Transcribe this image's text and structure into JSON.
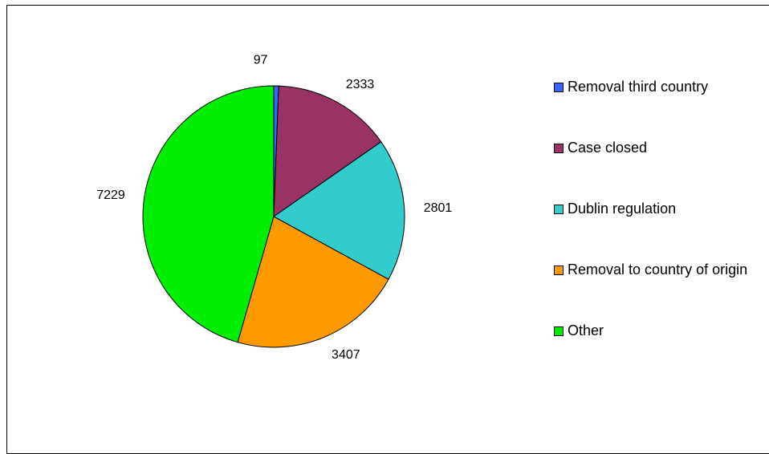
{
  "chart_data": {
    "type": "pie",
    "categories": [
      "Removal third country",
      "Case closed",
      "Dublin regulation",
      "Removal to country of origin",
      "Other"
    ],
    "values": [
      97,
      2333,
      2801,
      3407,
      7229
    ],
    "colors": [
      "#3366ff",
      "#993366",
      "#33cccc",
      "#ff9900",
      "#00ee00"
    ],
    "legend": "right"
  }
}
